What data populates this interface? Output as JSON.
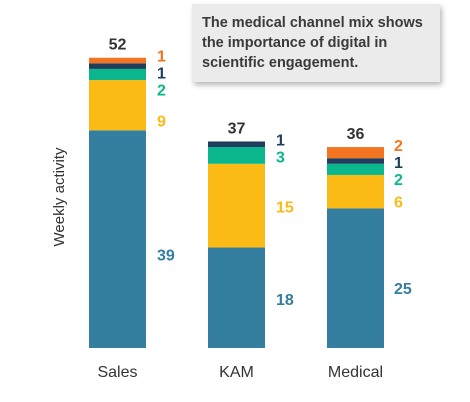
{
  "annotation": "The medical channel mix shows the importance of digital in scientific engagement.",
  "colors": {
    "segment_1": "#347ea0",
    "segment_2": "#fcbb14",
    "segment_3": "#0ab78c",
    "segment_4": "#1f3d5c",
    "segment_5": "#f47521",
    "text": "#333333"
  },
  "chart_data": {
    "type": "bar",
    "stacked": true,
    "categories": [
      "Sales",
      "KAM",
      "Medical"
    ],
    "ylabel": "Weekly activity",
    "ylim": [
      0,
      55
    ],
    "grid": false,
    "series": [
      {
        "color_key": "segment_1",
        "values": [
          39,
          18,
          25
        ]
      },
      {
        "color_key": "segment_2",
        "values": [
          9,
          15,
          6
        ]
      },
      {
        "color_key": "segment_3",
        "values": [
          2,
          3,
          2
        ]
      },
      {
        "color_key": "segment_4",
        "values": [
          1,
          1,
          1
        ]
      },
      {
        "color_key": "segment_5",
        "values": [
          1,
          0,
          2
        ]
      }
    ],
    "totals": [
      52,
      37,
      36
    ]
  }
}
